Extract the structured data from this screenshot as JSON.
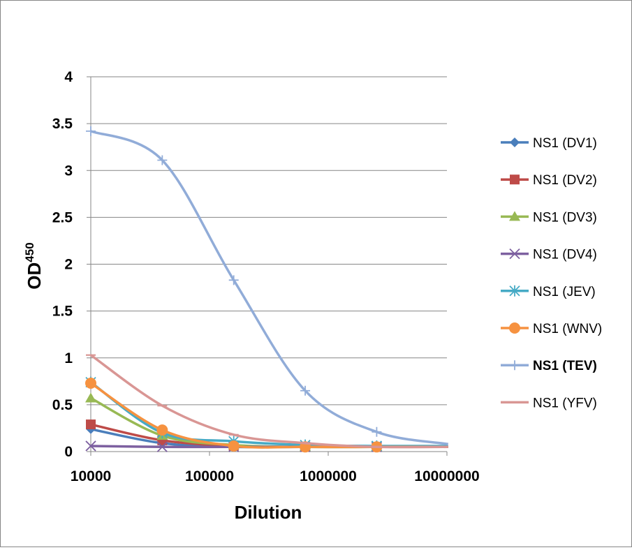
{
  "chart_data": {
    "type": "line",
    "title": "",
    "xlabel": "Dilution",
    "ylabel": "OD",
    "ylabel_superscript": "450",
    "x_scale": "log",
    "xlim": [
      10000,
      10000000
    ],
    "ylim": [
      0,
      4
    ],
    "x_tick_labels": [
      "10000",
      "100000",
      "1000000",
      "10000000"
    ],
    "y_tick_labels": [
      "0",
      "0.5",
      "1",
      "1.5",
      "2",
      "2.5",
      "3",
      "3.5",
      "4"
    ],
    "y_ticks": [
      0,
      0.5,
      1,
      1.5,
      2,
      2.5,
      3,
      3.5,
      4
    ],
    "x_ticks": [
      10000,
      100000,
      1000000,
      10000000
    ],
    "grid": true,
    "legend_position": "right",
    "x": [
      10000,
      40000,
      160000,
      640000,
      2560000,
      10240000
    ],
    "series": [
      {
        "name": "NS1 (DV1)",
        "color": "#4a7ebb",
        "marker": "diamond",
        "bold": false,
        "values": [
          0.24,
          0.09,
          0.05,
          0.05,
          0.05,
          0.05
        ]
      },
      {
        "name": "NS1 (DV2)",
        "color": "#be4b48",
        "marker": "square",
        "bold": false,
        "values": [
          0.29,
          0.12,
          0.06,
          0.05,
          0.05,
          0.05
        ]
      },
      {
        "name": "NS1 (DV3)",
        "color": "#98b954",
        "marker": "triangle",
        "bold": false,
        "values": [
          0.57,
          0.17,
          0.07,
          0.05,
          0.05,
          0.05
        ]
      },
      {
        "name": "NS1 (DV4)",
        "color": "#7d60a0",
        "marker": "x",
        "bold": false,
        "values": [
          0.06,
          0.05,
          0.05,
          0.05,
          0.05,
          0.05
        ]
      },
      {
        "name": "NS1 (JEV)",
        "color": "#46aac5",
        "marker": "asterisk",
        "bold": false,
        "values": [
          0.74,
          0.2,
          0.11,
          0.07,
          0.06,
          0.06
        ]
      },
      {
        "name": "NS1 (WNV)",
        "color": "#f69240",
        "marker": "circle",
        "bold": false,
        "values": [
          0.73,
          0.23,
          0.06,
          0.05,
          0.05,
          0.05
        ]
      },
      {
        "name": "NS1 (TEV)",
        "color": "#91acd8",
        "marker": "plus",
        "bold": true,
        "values": [
          3.42,
          3.11,
          1.83,
          0.65,
          0.21,
          0.08
        ]
      },
      {
        "name": "NS1 (YFV)",
        "color": "#d99694",
        "marker": "dash",
        "bold": false,
        "values": [
          1.03,
          0.49,
          0.18,
          0.09,
          0.05,
          0.05
        ]
      }
    ]
  }
}
